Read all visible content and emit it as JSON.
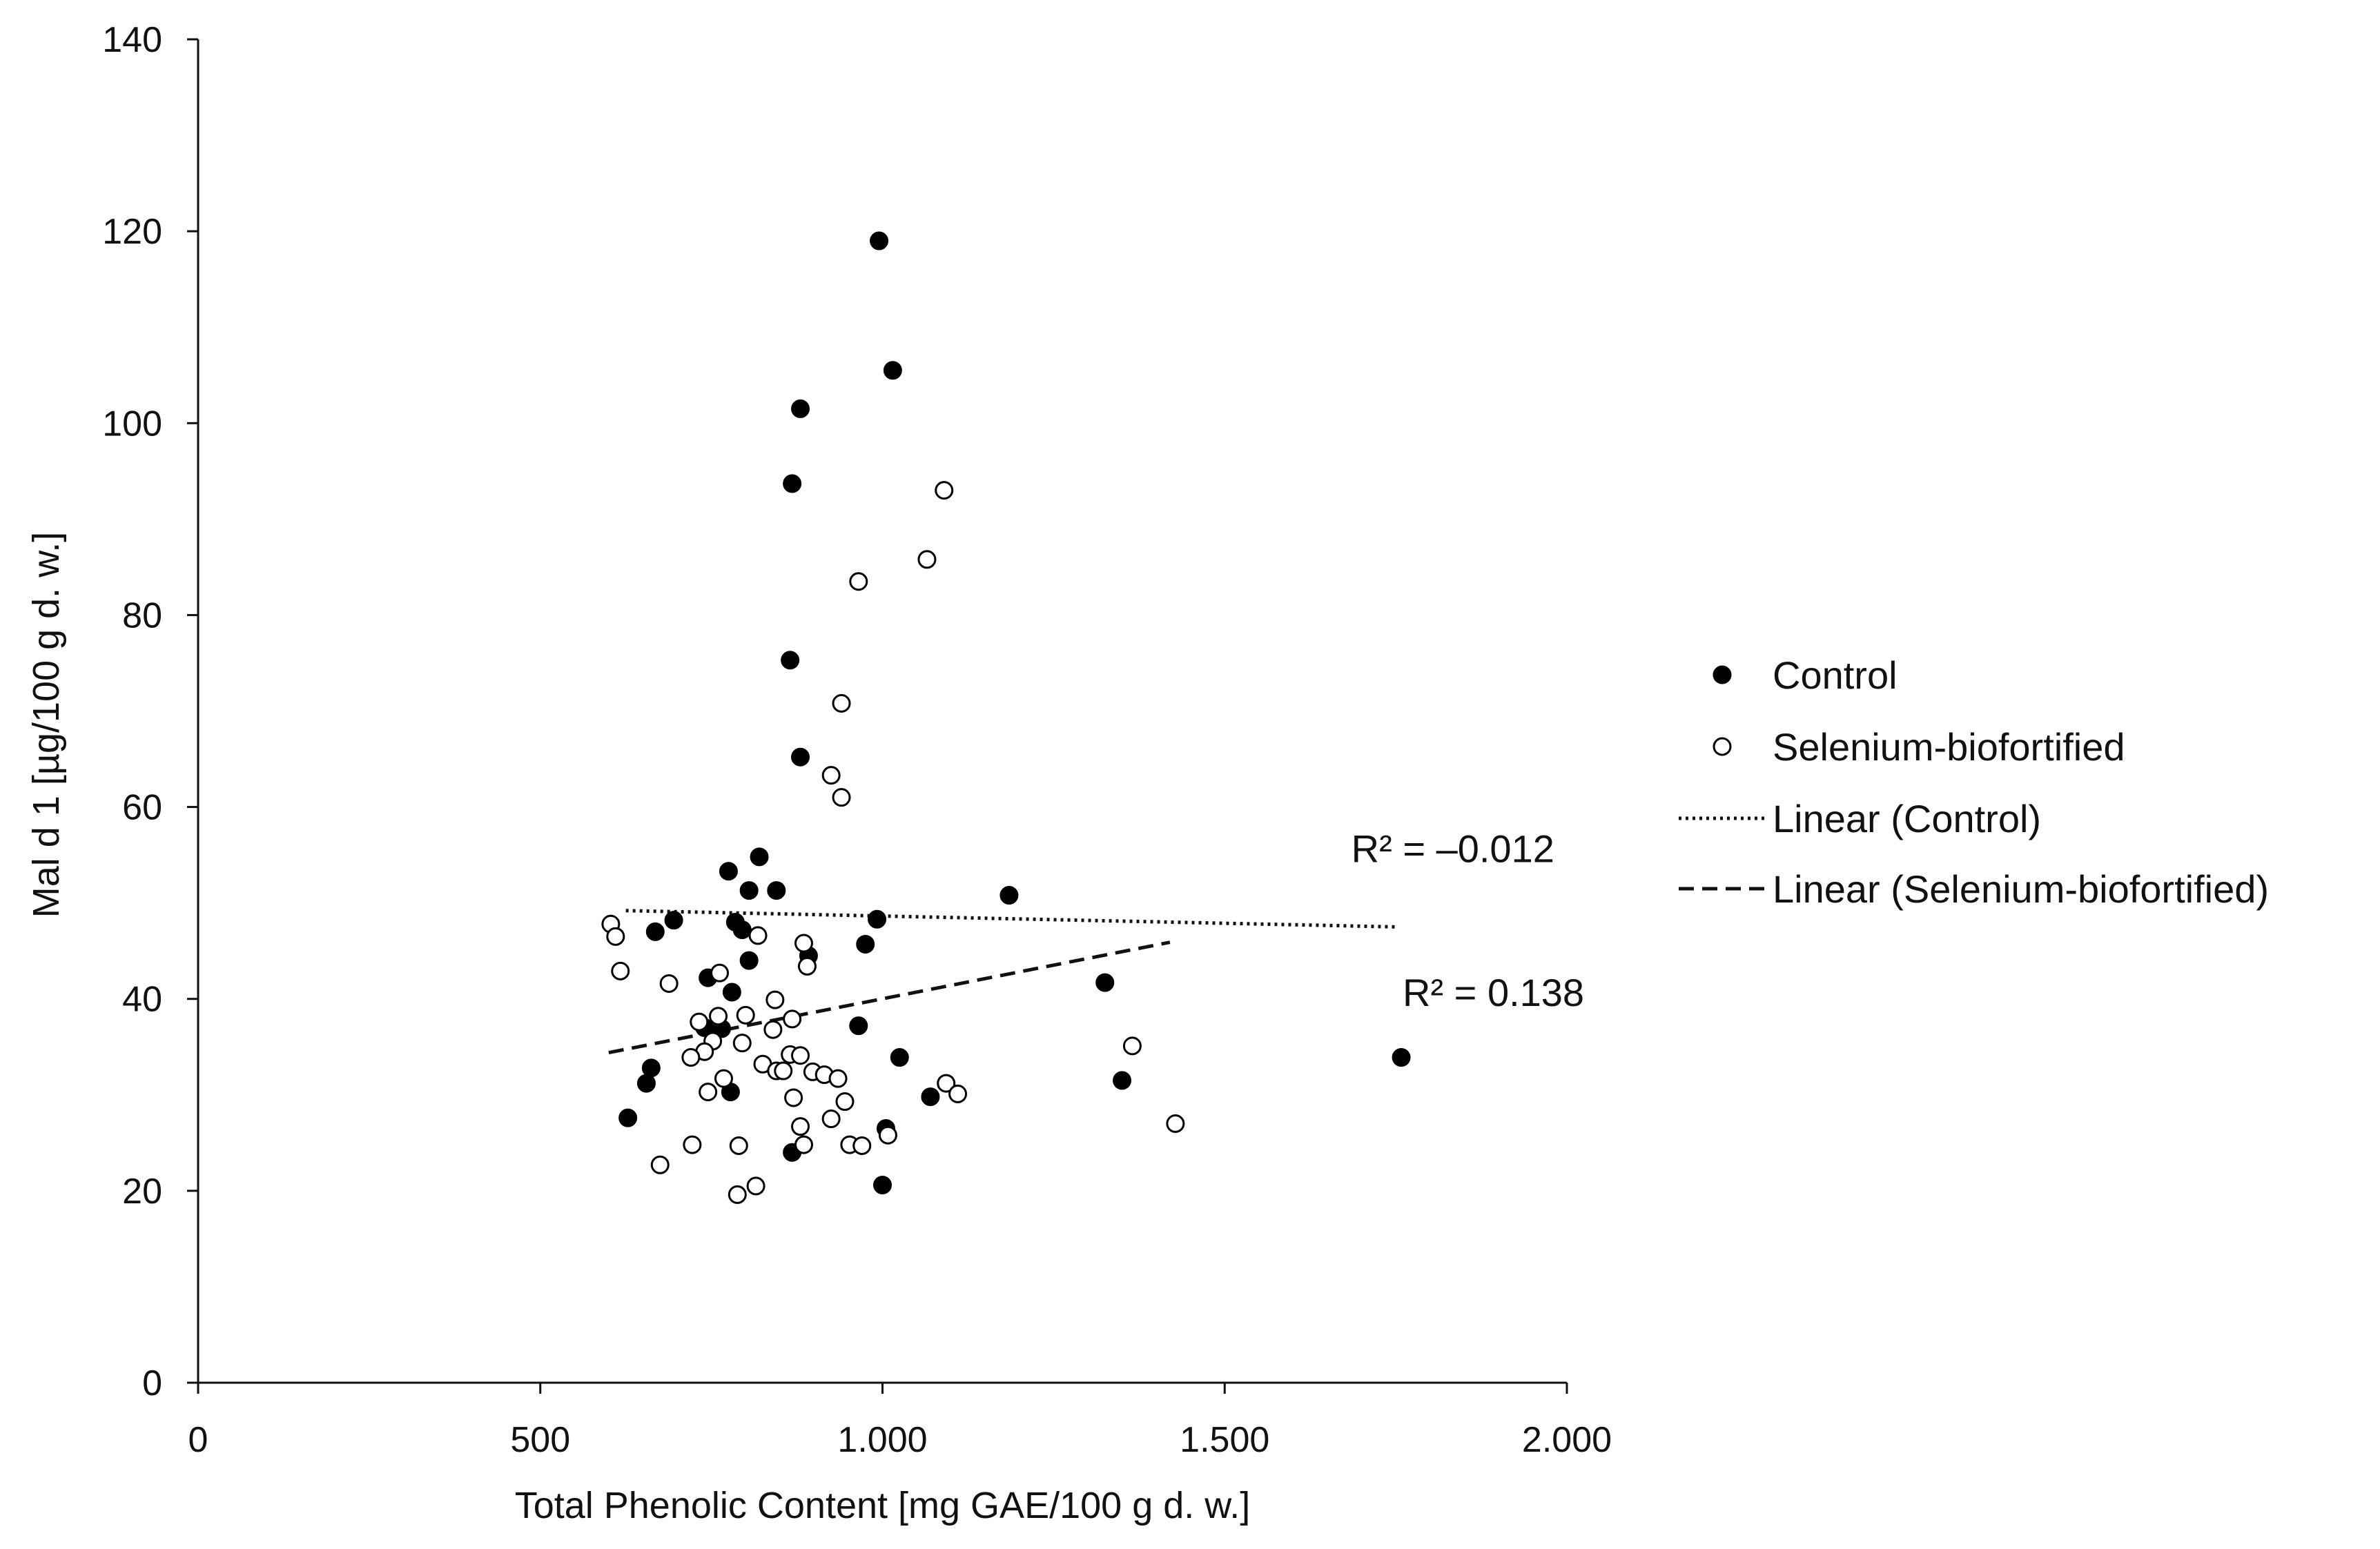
{
  "chart_data": {
    "type": "scatter",
    "xlabel": "Total Phenolic Content [mg GAE/100 g d. w.]",
    "ylabel": "Mal d 1 [µg/100 g d. w.]",
    "xlim": [
      0,
      2000
    ],
    "ylim": [
      0,
      140
    ],
    "x_ticks": [
      {
        "value": 0,
        "label": "0"
      },
      {
        "value": 500,
        "label": "500"
      },
      {
        "value": 1000,
        "label": "1.000"
      },
      {
        "value": 1500,
        "label": "1.500"
      },
      {
        "value": 2000,
        "label": "2.000"
      }
    ],
    "y_ticks": [
      {
        "value": 0,
        "label": "0"
      },
      {
        "value": 20,
        "label": "20"
      },
      {
        "value": 40,
        "label": "40"
      },
      {
        "value": 60,
        "label": "60"
      },
      {
        "value": 80,
        "label": "80"
      },
      {
        "value": 100,
        "label": "100"
      },
      {
        "value": 120,
        "label": "120"
      },
      {
        "value": 140,
        "label": "140"
      }
    ],
    "grid": false,
    "legend_position": "right",
    "series": [
      {
        "name": "Control",
        "marker": "filled-circle",
        "color": "#000000",
        "points": [
          [
            995,
            119
          ],
          [
            1015,
            105.5
          ],
          [
            880,
            101.5
          ],
          [
            868,
            93.7
          ],
          [
            865,
            75.3
          ],
          [
            880,
            65.2
          ],
          [
            820,
            54.8
          ],
          [
            775,
            53.3
          ],
          [
            845,
            51.3
          ],
          [
            805,
            51.3
          ],
          [
            1185,
            50.8
          ],
          [
            695,
            48.2
          ],
          [
            668,
            47
          ],
          [
            785,
            48
          ],
          [
            795,
            47.2
          ],
          [
            992,
            48.3
          ],
          [
            975,
            45.7
          ],
          [
            892,
            44.5
          ],
          [
            805,
            44
          ],
          [
            745,
            42.2
          ],
          [
            1325,
            41.7
          ],
          [
            780,
            40.7
          ],
          [
            740,
            37
          ],
          [
            765,
            36.9
          ],
          [
            965,
            37.2
          ],
          [
            662,
            32.8
          ],
          [
            655,
            31.2
          ],
          [
            1025,
            33.9
          ],
          [
            1758,
            33.9
          ],
          [
            1350,
            31.5
          ],
          [
            778,
            30.3
          ],
          [
            1070,
            29.8
          ],
          [
            628,
            27.6
          ],
          [
            1005,
            26.5
          ],
          [
            868,
            24
          ],
          [
            1000,
            20.6
          ]
        ]
      },
      {
        "name": "Selenium-biofortified",
        "marker": "open-circle",
        "color": "#000000",
        "points": [
          [
            1090,
            93
          ],
          [
            1065,
            85.8
          ],
          [
            965,
            83.5
          ],
          [
            940,
            70.8
          ],
          [
            925,
            63.3
          ],
          [
            940,
            61
          ],
          [
            603,
            47.8
          ],
          [
            610,
            46.5
          ],
          [
            818,
            46.6
          ],
          [
            885,
            45.8
          ],
          [
            890,
            43.4
          ],
          [
            617,
            42.9
          ],
          [
            688,
            41.6
          ],
          [
            762,
            42.7
          ],
          [
            843,
            39.9
          ],
          [
            732,
            37.6
          ],
          [
            760,
            38.2
          ],
          [
            800,
            38.3
          ],
          [
            868,
            37.9
          ],
          [
            840,
            36.8
          ],
          [
            752,
            35.6
          ],
          [
            740,
            34.5
          ],
          [
            795,
            35.4
          ],
          [
            1365,
            35.1
          ],
          [
            720,
            33.9
          ],
          [
            865,
            34.2
          ],
          [
            880,
            34.1
          ],
          [
            825,
            33.2
          ],
          [
            845,
            32.5
          ],
          [
            855,
            32.5
          ],
          [
            898,
            32.4
          ],
          [
            915,
            32.1
          ],
          [
            935,
            31.7
          ],
          [
            768,
            31.7
          ],
          [
            745,
            30.3
          ],
          [
            870,
            29.7
          ],
          [
            945,
            29.3
          ],
          [
            1093,
            31.2
          ],
          [
            1110,
            30.1
          ],
          [
            925,
            27.5
          ],
          [
            880,
            26.7
          ],
          [
            1008,
            25.8
          ],
          [
            1428,
            27
          ],
          [
            790,
            24.7
          ],
          [
            722,
            24.8
          ],
          [
            885,
            24.8
          ],
          [
            952,
            24.8
          ],
          [
            970,
            24.7
          ],
          [
            675,
            22.7
          ],
          [
            815,
            20.5
          ],
          [
            788,
            19.6
          ]
        ]
      }
    ],
    "trendlines": [
      {
        "name": "Linear (Control)",
        "style": "dotted",
        "from": [
          625,
          49.2
        ],
        "to": [
          1752,
          47.5
        ],
        "r2_label": "R² = –0.012",
        "r2_position": [
          1685,
          55.7
        ]
      },
      {
        "name": "Linear (Selenium-biofortified)",
        "style": "dashed",
        "from": [
          600,
          34.4
        ],
        "to": [
          1420,
          45.9
        ],
        "r2_label": "R² = 0.138",
        "r2_position": [
          1760,
          40.7
        ]
      }
    ]
  }
}
